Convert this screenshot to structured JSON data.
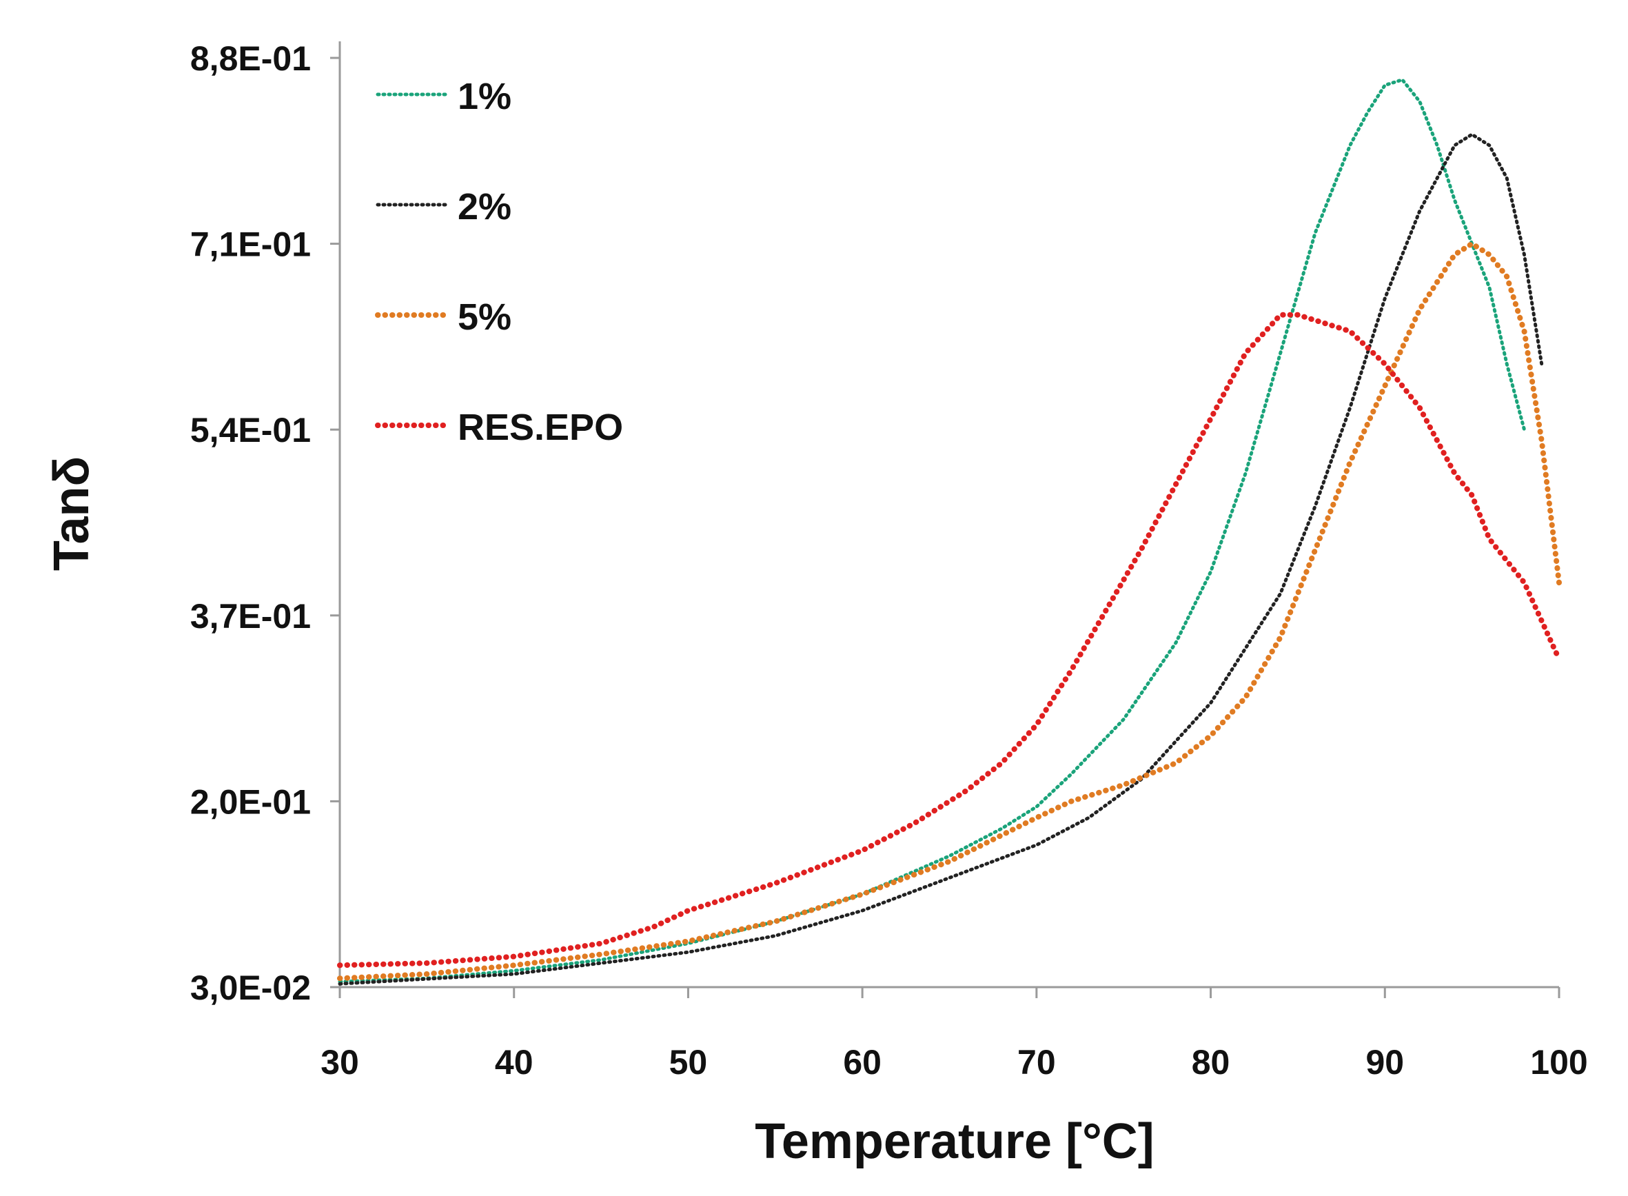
{
  "chart_data": {
    "type": "line",
    "title": "",
    "xlabel": "Temperature [°C]",
    "ylabel": "Tanδ",
    "xlim": [
      30,
      100
    ],
    "ylim": [
      0.03,
      0.88
    ],
    "xticks": [
      30,
      40,
      50,
      60,
      70,
      80,
      90,
      100
    ],
    "xtick_labels": [
      "30",
      "40",
      "50",
      "60",
      "70",
      "80",
      "90",
      "100"
    ],
    "yticks": [
      0.03,
      0.2,
      0.37,
      0.54,
      0.71,
      0.88
    ],
    "ytick_labels": [
      "3,0E-02",
      "2,0E-01",
      "3,7E-01",
      "5,4E-01",
      "7,1E-01",
      "8,8E-01"
    ],
    "grid": false,
    "legend_position": "top-left",
    "series": [
      {
        "name": "1%",
        "color": "#1aa37a",
        "line_style": "dotted-fine",
        "x": [
          30,
          35,
          40,
          45,
          50,
          55,
          60,
          65,
          68,
          70,
          72,
          75,
          78,
          80,
          82,
          84,
          86,
          88,
          89,
          90,
          91,
          92,
          93,
          94,
          95,
          96,
          97,
          98
        ],
        "y": [
          0.035,
          0.038,
          0.045,
          0.055,
          0.07,
          0.09,
          0.115,
          0.15,
          0.175,
          0.195,
          0.225,
          0.275,
          0.345,
          0.41,
          0.5,
          0.61,
          0.72,
          0.8,
          0.83,
          0.855,
          0.86,
          0.84,
          0.8,
          0.75,
          0.71,
          0.67,
          0.6,
          0.54
        ]
      },
      {
        "name": "2%",
        "color": "#222222",
        "line_style": "dotted-fine",
        "x": [
          30,
          40,
          50,
          55,
          60,
          65,
          70,
          73,
          76,
          78,
          80,
          82,
          84,
          86,
          88,
          90,
          92,
          94,
          95,
          96,
          97,
          98,
          99
        ],
        "y": [
          0.033,
          0.042,
          0.062,
          0.077,
          0.1,
          0.13,
          0.16,
          0.185,
          0.22,
          0.255,
          0.29,
          0.34,
          0.39,
          0.47,
          0.56,
          0.66,
          0.74,
          0.8,
          0.81,
          0.8,
          0.77,
          0.7,
          0.6
        ]
      },
      {
        "name": "5%",
        "color": "#e07b22",
        "line_style": "dotted-coarse",
        "x": [
          30,
          35,
          40,
          45,
          50,
          55,
          60,
          65,
          70,
          72,
          75,
          78,
          80,
          82,
          84,
          86,
          88,
          90,
          92,
          94,
          95,
          96,
          97,
          98,
          99,
          100
        ],
        "y": [
          0.038,
          0.042,
          0.05,
          0.06,
          0.072,
          0.09,
          0.115,
          0.145,
          0.185,
          0.2,
          0.215,
          0.235,
          0.26,
          0.295,
          0.35,
          0.43,
          0.51,
          0.58,
          0.65,
          0.7,
          0.71,
          0.7,
          0.68,
          0.63,
          0.53,
          0.4
        ]
      },
      {
        "name": "RES.EPO",
        "color": "#e02020",
        "line_style": "dotted-coarse",
        "x": [
          30,
          35,
          40,
          45,
          48,
          50,
          55,
          60,
          63,
          66,
          68,
          70,
          72,
          74,
          76,
          78,
          80,
          82,
          84,
          85,
          86,
          88,
          90,
          92,
          94,
          95,
          96,
          97,
          98,
          100
        ],
        "y": [
          0.05,
          0.052,
          0.058,
          0.07,
          0.085,
          0.1,
          0.125,
          0.155,
          0.18,
          0.21,
          0.235,
          0.27,
          0.32,
          0.375,
          0.43,
          0.49,
          0.55,
          0.61,
          0.645,
          0.645,
          0.64,
          0.63,
          0.6,
          0.56,
          0.5,
          0.48,
          0.44,
          0.42,
          0.4,
          0.33
        ]
      }
    ]
  }
}
